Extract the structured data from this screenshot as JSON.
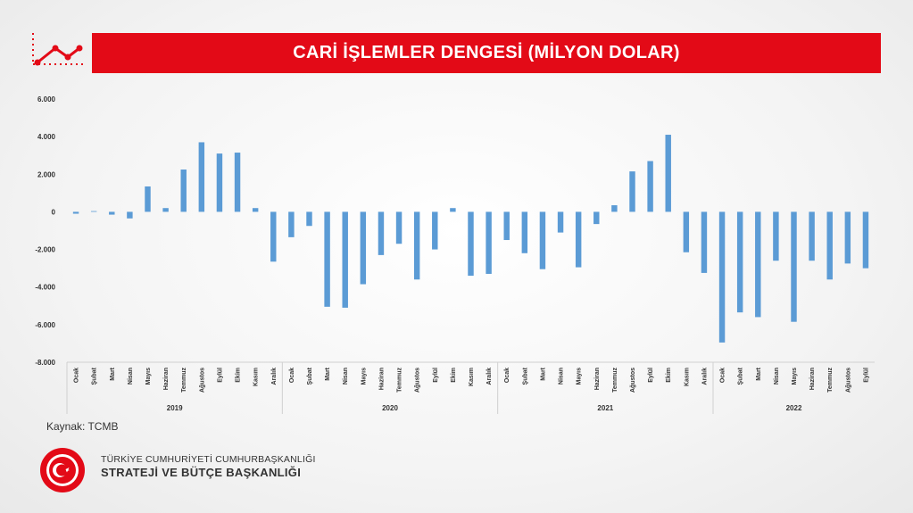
{
  "header": {
    "title": "CARİ İŞLEMLER DENGESİ (MİLYON DOLAR)",
    "trend_icon": "trend-line-icon",
    "accent_color": "#e30a17"
  },
  "chart_data": {
    "type": "bar",
    "title": "CARİ İŞLEMLER DENGESİ (MİLYON DOLAR)",
    "xlabel": "",
    "ylabel": "",
    "ylim": [
      -8000,
      6000
    ],
    "yticks": [
      6000,
      4000,
      2000,
      0,
      -2000,
      -4000,
      -6000,
      -8000
    ],
    "ytick_labels": [
      "6.000",
      "4.000",
      "2.000",
      "0",
      "-2.000",
      "-4.000",
      "-6.000",
      "-8.000"
    ],
    "grid": false,
    "bar_color": "#5b9bd5",
    "years": [
      {
        "year": "2019",
        "months": [
          "Ocak",
          "Şubat",
          "Mart",
          "Nisan",
          "Mayıs",
          "Haziran",
          "Temmuz",
          "Ağustos",
          "Eylül",
          "Ekim",
          "Kasım",
          "Aralık"
        ],
        "values": [
          -100,
          0,
          -150,
          -350,
          1350,
          200,
          2250,
          3700,
          3100,
          3150,
          200,
          -2650
        ]
      },
      {
        "year": "2020",
        "months": [
          "Ocak",
          "Şubat",
          "Mart",
          "Nisan",
          "Mayıs",
          "Haziran",
          "Temmuz",
          "Ağustos",
          "Eylül",
          "Ekim",
          "Kasım",
          "Aralık"
        ],
        "values": [
          -1350,
          -750,
          -5050,
          -5100,
          -3850,
          -2300,
          -1700,
          -3600,
          -2000,
          200,
          -3400,
          -3300
        ]
      },
      {
        "year": "2021",
        "months": [
          "Ocak",
          "Şubat",
          "Mart",
          "Nisan",
          "Mayıs",
          "Haziran",
          "Temmuz",
          "Ağustos",
          "Eylül",
          "Ekim",
          "Kasım",
          "Aralık"
        ],
        "values": [
          -1500,
          -2200,
          -3050,
          -1100,
          -2950,
          -650,
          350,
          2150,
          2700,
          4100,
          -2150,
          -3250
        ]
      },
      {
        "year": "2022",
        "months": [
          "Ocak",
          "Şubat",
          "Mart",
          "Nisan",
          "Mayıs",
          "Haziran",
          "Temmuz",
          "Ağustos",
          "Eylül"
        ],
        "values": [
          -6950,
          -5350,
          -5600,
          -2600,
          -5850,
          -2600,
          -3600,
          -2750,
          -3000
        ]
      }
    ]
  },
  "footer": {
    "source": "Kaynak:  TCMB",
    "org_line1": "TÜRKİYE CUMHURİYETİ CUMHURBAŞKANLIĞI",
    "org_line2": "STRATEJİ VE BÜTÇE BAŞKANLIĞI",
    "logo_icon": "crescent-star-seal-icon",
    "logo_text": "T.C. CUMHURBAŞKANLIĞI STRATEJİ VE BÜTÇE BAŞKANLIĞI"
  }
}
